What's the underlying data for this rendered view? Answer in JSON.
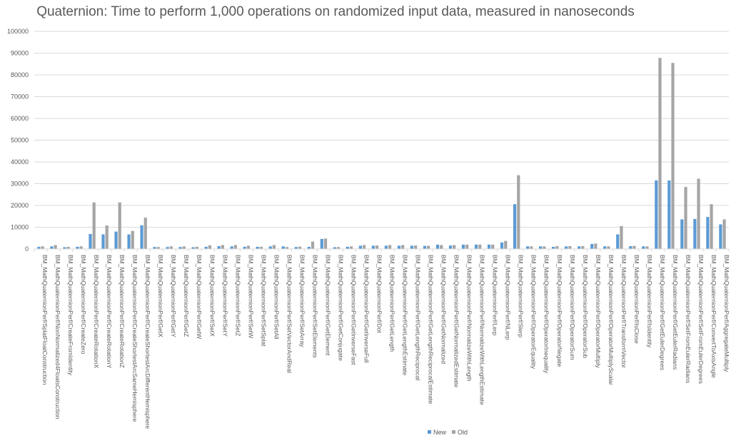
{
  "chart_data": {
    "type": "bar",
    "title": "Quaternion: Time to perform 1,000 operations on randomized input data, measured in nanoseconds",
    "ylim": [
      0,
      100000
    ],
    "yticks": [
      0,
      10000,
      20000,
      30000,
      40000,
      50000,
      60000,
      70000,
      80000,
      90000,
      100000
    ],
    "grid": true,
    "legend_position": "bottom-right",
    "colors": {
      "New": "#5b9bd5",
      "Old": "#a5a5a5"
    },
    "categories": [
      "BM_MathQuaternionPerf/SplatFloatConstruction",
      "BM_MathQuaternionPerf/NonNormalized4FloatsConstruction",
      "BM_MathQuaternionPerf/CreateFromIdentity",
      "BM_MathQuaternionPerf/CreateZero",
      "BM_MathQuaternionPerf/CreateRotationX",
      "BM_MathQuaternionPerf/CreateRotationY",
      "BM_MathQuaternionPerf/CreateRotationZ",
      "BM_MathQuaternionPerf/CreateShortestArcSameHemisphere",
      "BM_MathQuaternionPerf/CreateShortestArcDifferentHemisphere",
      "BM_MathQuaternionPerf/GetX",
      "BM_MathQuaternionPerf/GetY",
      "BM_MathQuaternionPerf/GetZ",
      "BM_MathQuaternionPerf/GetW",
      "BM_MathQuaternionPerf/SetX",
      "BM_MathQuaternionPerf/SetY",
      "BM_MathQuaternionPerf/SetZ",
      "BM_MathQuaternionPerf/SetW",
      "BM_MathQuaternionPerf/SetSplat",
      "BM_MathQuaternionPerf/SetAll",
      "BM_MathQuaternionPerf/SetVectorAndReal",
      "BM_MathQuaternionPerf/SetArray",
      "BM_MathQuaternionPerf/SetElements",
      "BM_MathQuaternionPerf/GetElement",
      "BM_MathQuaternionPerf/GetConjugate",
      "BM_MathQuaternionPerf/GetInverseFast",
      "BM_MathQuaternionPerf/GetInverseFull",
      "BM_MathQuaternionPerf/Dot",
      "BM_MathQuaternionPerf/GetLength",
      "BM_MathQuaternionPerf/GetLengthEstimate",
      "BM_MathQuaternionPerf/GetLengthReciprocal",
      "BM_MathQuaternionPerf/GetLengthReciprocalEstimate",
      "BM_MathQuaternionPerf/GetNormalized",
      "BM_MathQuaternionPerf/GetNormalizedEstimate",
      "BM_MathQuaternionPerf/NormalizeWithLength",
      "BM_MathQuaternionPerf/NormalizeWithLengthEstimate",
      "BM_MathQuaternionPerf/Lerp",
      "BM_MathQuaternionPerf/NLerp",
      "BM_MathQuaternionPerf/Slerp",
      "BM_MathQuaternionPerf/OperatorEquality",
      "BM_MathQuaternionPerf/OperatorInequality",
      "BM_MathQuaternionPerf/OperatorNegate",
      "BM_MathQuaternionPerf/OperatorSum",
      "BM_MathQuaternionPerf/OperatorSub",
      "BM_MathQuaternionPerf/OperatorMultiply",
      "BM_MathQuaternionPerf/OperatorMultiplyScalar",
      "BM_MathQuaternionPerf/TransformVector",
      "BM_MathQuaternionPerf/IsClose",
      "BM_MathQuaternionPerf/IsIdentity",
      "BM_MathQuaternionPerf/GetEulerDegrees",
      "BM_MathQuaternionPerf/GetEulerRadians",
      "BM_MathQuaternionPerf/SetFromEulerRadians",
      "BM_MathQuaternionPerf/SetFromEulerDegrees",
      "BM_MathQuaternionPerf/ConvertToAxisAngle",
      "BM_MathQuaternionPerf/AggregateMultiply"
    ],
    "series": [
      {
        "name": "New",
        "values": [
          1000,
          1200,
          800,
          1000,
          6900,
          6700,
          8000,
          6700,
          10900,
          900,
          900,
          900,
          800,
          1000,
          1300,
          1200,
          1000,
          1000,
          1200,
          1200,
          900,
          1000,
          4600,
          800,
          1000,
          1500,
          1500,
          1500,
          1500,
          1500,
          1400,
          2000,
          1600,
          2000,
          2000,
          2000,
          3000,
          20600,
          1200,
          1200,
          1000,
          1200,
          1200,
          2300,
          1200,
          6700,
          1300,
          1200,
          31500,
          31500,
          13600,
          13800,
          14700,
          11300
        ]
      },
      {
        "name": "Old",
        "values": [
          1200,
          1800,
          1000,
          1200,
          21400,
          10800,
          21400,
          8300,
          14400,
          900,
          1200,
          1200,
          1000,
          1700,
          1800,
          1800,
          1500,
          1000,
          1800,
          900,
          1100,
          3400,
          4800,
          900,
          1200,
          1800,
          1600,
          1800,
          1800,
          1600,
          1500,
          1800,
          1800,
          2000,
          2000,
          2000,
          3700,
          33900,
          1200,
          1200,
          1300,
          1300,
          1300,
          2500,
          1200,
          10500,
          1400,
          1200,
          87800,
          85500,
          28500,
          32300,
          20600,
          13600
        ]
      }
    ]
  }
}
